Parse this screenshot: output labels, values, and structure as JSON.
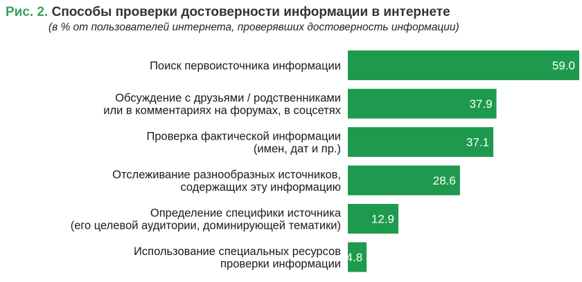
{
  "header": {
    "figure_label": "Рис. 2.",
    "title": "Способы проверки достоверности информации в интернете",
    "subtitle": "(в % от пользователей интернета, проверявших достоверность информации)"
  },
  "colors": {
    "bar": "#1e9a4e",
    "figure_label": "#3aa05a"
  },
  "chart_data": {
    "type": "bar",
    "orientation": "horizontal",
    "title": "Способы проверки достоверности информации в интернете",
    "subtitle": "(в % от пользователей интернета, проверявших достоверность информации)",
    "categories": [
      [
        "Поиск первоисточника информации"
      ],
      [
        "Обсуждение с друзьями / родственниками",
        "или в комментариях на форумах, в соцсетях"
      ],
      [
        "Проверка фактической информации",
        "(имен, дат и пр.)"
      ],
      [
        "Отслеживание разнообразных источников,",
        "содержащих эту информацию"
      ],
      [
        "Определение специфики источника",
        "(его целевой аудитории, доминирующей тематики)"
      ],
      [
        "Использование специальных ресурсов",
        "проверки информации"
      ]
    ],
    "values": [
      59.0,
      37.9,
      37.1,
      28.6,
      12.9,
      4.8
    ],
    "value_labels": [
      "59.0",
      "37.9",
      "37.1",
      "28.6",
      "12.9",
      "4.8"
    ],
    "xlim": [
      0,
      59.0
    ],
    "grid": false,
    "legend": "none",
    "bar_color": "#1e9a4e"
  }
}
